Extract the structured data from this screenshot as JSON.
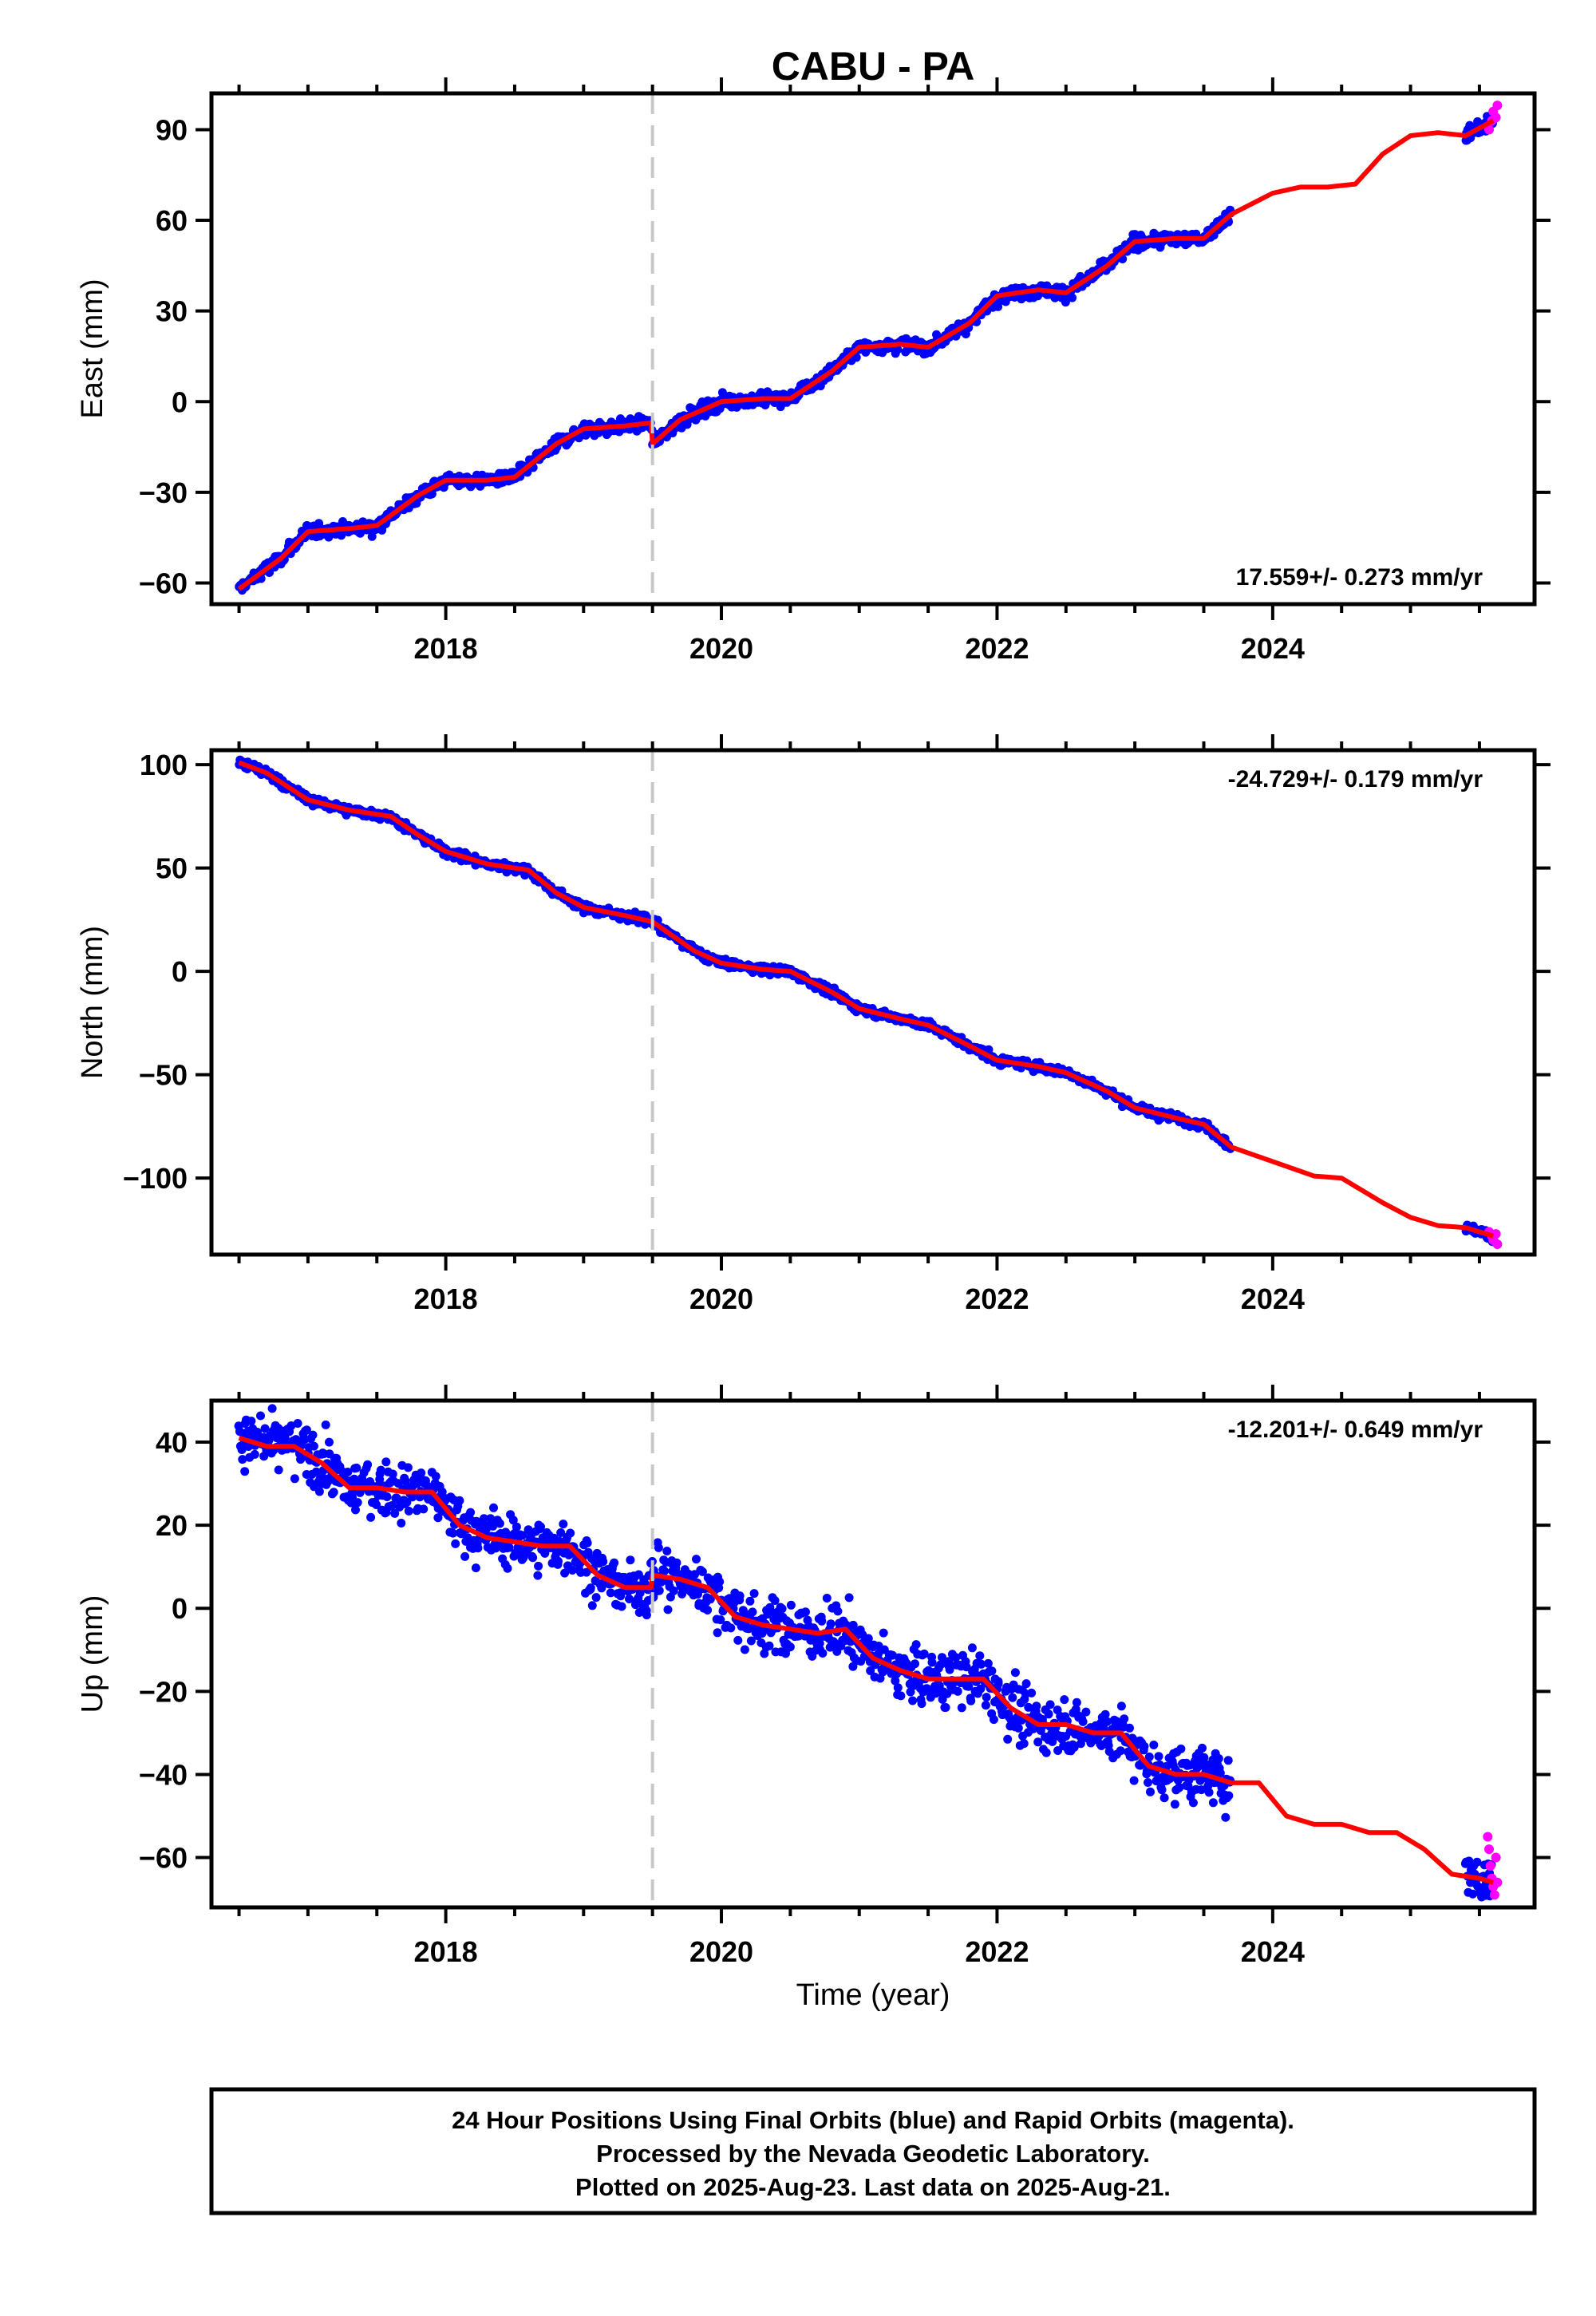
{
  "title": "CABU - PA",
  "footer": {
    "line1": "24 Hour Positions Using Final Orbits (blue) and Rapid Orbits (magenta).",
    "line2": "Processed by the Nevada Geodetic Laboratory.",
    "line3": "Plotted on 2025-Aug-23. Last data on 2025-Aug-21."
  },
  "colors": {
    "final": "#0000ff",
    "rapid": "#ff00ff",
    "model": "#ff0000",
    "break_line": "#c8c8c8"
  },
  "chart_data": [
    {
      "type": "scatter",
      "title": "CABU - PA",
      "xlabel": "",
      "ylabel": "East (mm)",
      "xlim": [
        2016.3,
        2025.9
      ],
      "ylim": [
        -67,
        102
      ],
      "xticks": [
        2018,
        2020,
        2022,
        2024
      ],
      "yticks": [
        -60,
        -30,
        0,
        30,
        60,
        90
      ],
      "rate_label": "17.559+/- 0.273 mm/yr",
      "rate_position": "bottom-right",
      "vertical_break": 2019.5,
      "scatter_noise_mm": 1.6,
      "final_orbits": {
        "name": "Final Orbits",
        "segments": [
          [
            2016.5,
            2023.7
          ],
          [
            2025.4,
            2025.6
          ]
        ]
      },
      "rapid_orbits": {
        "name": "Rapid Orbits",
        "x": [
          2025.57,
          2025.59,
          2025.6,
          2025.62,
          2025.63
        ],
        "y": [
          90,
          93,
          96,
          94,
          98
        ]
      },
      "model": {
        "x": [
          2016.5,
          2016.8,
          2017.0,
          2017.3,
          2017.5,
          2017.8,
          2018.0,
          2018.3,
          2018.5,
          2018.8,
          2019.0,
          2019.3,
          2019.49,
          2019.5,
          2019.7,
          2020.0,
          2020.3,
          2020.5,
          2020.8,
          2021.0,
          2021.3,
          2021.5,
          2021.8,
          2022.0,
          2022.3,
          2022.5,
          2022.8,
          2023.0,
          2023.3,
          2023.5,
          2023.7,
          2024.0,
          2024.2,
          2024.4,
          2024.6,
          2024.8,
          2025.0,
          2025.2,
          2025.4,
          2025.6
        ],
        "y": [
          -62,
          -52,
          -43,
          -42,
          -41,
          -31,
          -26,
          -26,
          -25,
          -14,
          -9,
          -8,
          -7,
          -14,
          -6,
          0,
          1,
          1,
          10,
          18,
          19,
          18,
          26,
          35,
          37,
          36,
          45,
          53,
          54,
          54,
          62,
          69,
          71,
          71,
          72,
          82,
          88,
          89,
          88,
          93
        ]
      }
    },
    {
      "type": "scatter",
      "xlabel": "",
      "ylabel": "North (mm)",
      "xlim": [
        2016.3,
        2025.9
      ],
      "ylim": [
        -137,
        107
      ],
      "xticks": [
        2018,
        2020,
        2022,
        2024
      ],
      "yticks": [
        -100,
        -50,
        0,
        50,
        100
      ],
      "rate_label": "-24.729+/- 0.179 mm/yr",
      "rate_position": "top-right",
      "vertical_break": 2019.5,
      "scatter_noise_mm": 1.5,
      "final_orbits": {
        "name": "Final Orbits",
        "segments": [
          [
            2016.5,
            2023.7
          ],
          [
            2025.4,
            2025.6
          ]
        ]
      },
      "rapid_orbits": {
        "name": "Rapid Orbits",
        "x": [
          2025.57,
          2025.59,
          2025.6,
          2025.62,
          2025.63
        ],
        "y": [
          -126,
          -128,
          -130,
          -127,
          -132
        ]
      },
      "model": {
        "x": [
          2016.5,
          2016.7,
          2017.0,
          2017.3,
          2017.6,
          2017.8,
          2018.0,
          2018.3,
          2018.6,
          2018.8,
          2019.0,
          2019.3,
          2019.5,
          2019.8,
          2020.0,
          2020.3,
          2020.5,
          2020.8,
          2021.0,
          2021.3,
          2021.5,
          2021.8,
          2022.0,
          2022.3,
          2022.5,
          2022.8,
          2023.0,
          2023.3,
          2023.5,
          2023.7,
          2024.0,
          2024.3,
          2024.5,
          2024.8,
          2025.0,
          2025.2,
          2025.4,
          2025.6
        ],
        "y": [
          101,
          96,
          83,
          78,
          75,
          66,
          58,
          52,
          49,
          38,
          31,
          27,
          24,
          10,
          4,
          1,
          0,
          -10,
          -18,
          -23,
          -26,
          -36,
          -43,
          -46,
          -49,
          -58,
          -66,
          -71,
          -74,
          -85,
          -92,
          -99,
          -100,
          -112,
          -119,
          -123,
          -124,
          -128
        ]
      }
    },
    {
      "type": "scatter",
      "xlabel": "Time (year)",
      "ylabel": "Up (mm)",
      "xlim": [
        2016.3,
        2025.9
      ],
      "ylim": [
        -72,
        50
      ],
      "xticks": [
        2018,
        2020,
        2022,
        2024
      ],
      "yticks": [
        -60,
        -40,
        -20,
        0,
        20,
        40
      ],
      "rate_label": "-12.201+/- 0.649 mm/yr",
      "rate_position": "top-right",
      "vertical_break": 2019.5,
      "scatter_noise_mm": 4.5,
      "final_orbits": {
        "name": "Final Orbits",
        "segments": [
          [
            2016.5,
            2023.7
          ],
          [
            2025.4,
            2025.6
          ]
        ]
      },
      "rapid_orbits": {
        "name": "Rapid Orbits",
        "x": [
          2025.56,
          2025.57,
          2025.58,
          2025.59,
          2025.6,
          2025.61,
          2025.62,
          2025.63
        ],
        "y": [
          -55,
          -58,
          -62,
          -65,
          -67,
          -69,
          -60,
          -66
        ]
      },
      "model": {
        "x": [
          2016.5,
          2016.7,
          2016.9,
          2017.1,
          2017.3,
          2017.5,
          2017.7,
          2017.9,
          2018.1,
          2018.3,
          2018.5,
          2018.7,
          2018.9,
          2019.1,
          2019.3,
          2019.49,
          2019.5,
          2019.7,
          2019.9,
          2020.1,
          2020.3,
          2020.5,
          2020.7,
          2020.9,
          2021.1,
          2021.3,
          2021.5,
          2021.7,
          2021.9,
          2022.1,
          2022.3,
          2022.5,
          2022.7,
          2022.9,
          2023.1,
          2023.3,
          2023.5,
          2023.7,
          2023.9,
          2024.1,
          2024.3,
          2024.5,
          2024.7,
          2024.9,
          2025.1,
          2025.3,
          2025.5,
          2025.6
        ],
        "y": [
          41,
          39,
          39,
          35,
          29,
          29,
          28,
          28,
          20,
          17,
          16,
          15,
          15,
          8,
          5,
          5,
          8,
          7,
          5,
          -2,
          -4,
          -5,
          -6,
          -5,
          -12,
          -15,
          -17,
          -17,
          -17,
          -24,
          -28,
          -28,
          -30,
          -30,
          -38,
          -40,
          -40,
          -42,
          -42,
          -50,
          -52,
          -52,
          -54,
          -54,
          -58,
          -64,
          -65,
          -66
        ]
      }
    }
  ]
}
